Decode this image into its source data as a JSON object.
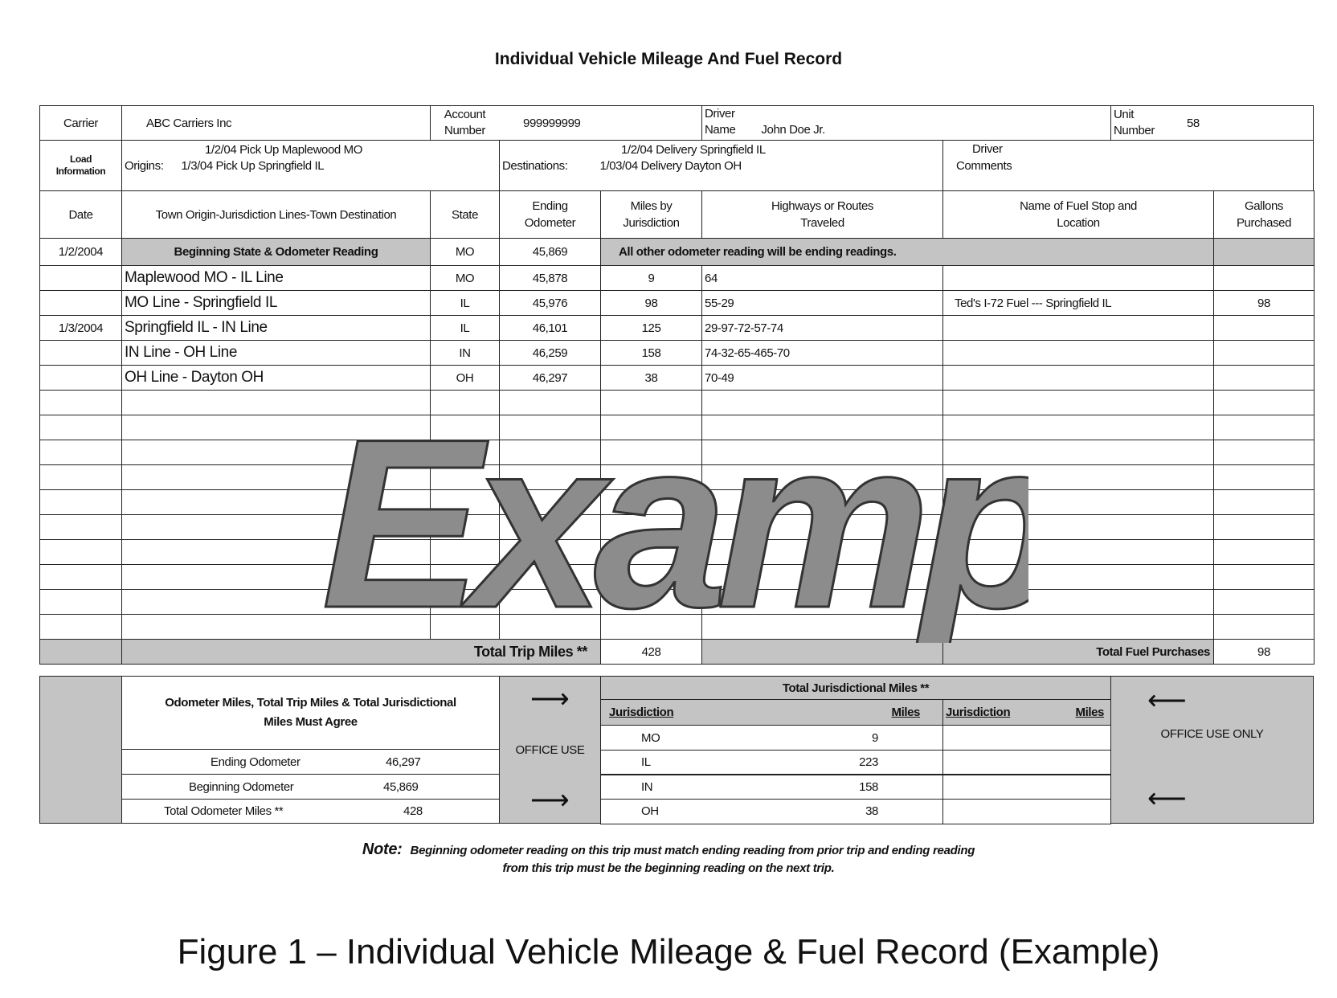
{
  "title": "Individual Vehicle Mileage And Fuel Record",
  "header": {
    "carrier_label": "Carrier",
    "carrier": "ABC Carriers Inc",
    "account_label_1": "Account",
    "account_label_2": "Number",
    "account": "999999999",
    "driver_label_1": "Driver",
    "driver_label_2": "Name",
    "driver": "John Doe Jr.",
    "unit_label_1": "Unit",
    "unit_label_2": "Number",
    "unit": "58",
    "load_label_1": "Load",
    "load_label_2": "Information",
    "origins_label": "Origins:",
    "origin_1": "1/2/04 Pick Up Maplewood MO",
    "origin_2": "1/3/04 Pick Up  Springfield IL",
    "destinations_label": "Destinations:",
    "destination_1": "1/2/04 Delivery Springfield IL",
    "destination_2": "1/03/04 Delivery Dayton OH",
    "comments_label_1": "Driver",
    "comments_label_2": "Comments"
  },
  "columns": [
    "Date",
    "Town Origin-Jurisdiction Lines-Town Destination",
    "State",
    "Ending Odometer",
    "Miles by Jurisdiction",
    "Highways or  Routes Traveled",
    "Name of Fuel Stop and Location",
    "Gallons Purchased"
  ],
  "beginning_row": {
    "date": "1/2/2004",
    "label": "Beginning State & Odometer Reading",
    "state": "MO",
    "odometer": "45,869",
    "note": "All other odometer reading will be ending readings."
  },
  "trip_rows": [
    {
      "date": "",
      "town": "Maplewood MO - IL Line",
      "state": "MO",
      "odometer": "45,878",
      "miles": "9",
      "routes": "64",
      "fuel_stop": "",
      "gallons": ""
    },
    {
      "date": "",
      "town": "MO Line - Springfield IL",
      "state": "IL",
      "odometer": "45,976",
      "miles": "98",
      "routes": "55-29",
      "fuel_stop": "Ted's I-72 Fuel  --- Springfield IL",
      "gallons": "98"
    },
    {
      "date": "1/3/2004",
      "town": "Springfield IL - IN Line",
      "state": "IL",
      "odometer": "46,101",
      "miles": "125",
      "routes": "29-97-72-57-74",
      "fuel_stop": "",
      "gallons": ""
    },
    {
      "date": "",
      "town": "IN Line - OH Line",
      "state": "IN",
      "odometer": "46,259",
      "miles": "158",
      "routes": "74-32-65-465-70",
      "fuel_stop": "",
      "gallons": ""
    },
    {
      "date": "",
      "town": "OH Line - Dayton OH",
      "state": "OH",
      "odometer": "46,297",
      "miles": "38",
      "routes": "70-49",
      "fuel_stop": "",
      "gallons": ""
    }
  ],
  "empty_row_count": 10,
  "totals": {
    "trip_label": "Total Trip Miles  **",
    "trip_miles": "428",
    "fuel_label": "Total Fuel Purchases",
    "fuel": "98"
  },
  "summary": {
    "agree_text": "Odometer Miles, Total Trip Miles  &  Total Jurisdictional Miles  Must Agree",
    "ending_label": "Ending Odometer",
    "ending": "46,297",
    "beginning_label": "Beginning Odometer",
    "beginning": "45,869",
    "total_label": "Total Odometer Miles  **",
    "total": "428",
    "office_use": "OFFICE USE",
    "office_use_only": "OFFICE USE  ONLY",
    "juris_title": "Total Jurisdictional Miles  **",
    "juris_col": "Jurisdiction",
    "miles_col": "Miles",
    "juris_rows": [
      {
        "j": "MO",
        "m": "9"
      },
      {
        "j": "IL",
        "m": "223"
      },
      {
        "j": "IN",
        "m": "158"
      },
      {
        "j": "OH",
        "m": "38"
      }
    ]
  },
  "watermark": "Example",
  "note_label": "Note:",
  "note_line_1": "Beginning odometer reading on this trip must match ending reading from prior trip and ending reading",
  "note_line_2": "from this trip must be the beginning reading on the next trip.",
  "caption": "Figure 1 – Individual Vehicle Mileage & Fuel Record (Example)",
  "colors": {
    "shade": "#c4c4c4",
    "watermark_fill": "#8c8c8c"
  }
}
